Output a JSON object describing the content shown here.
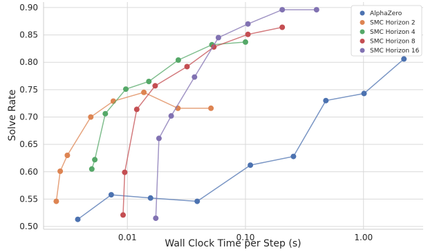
{
  "chart_data": {
    "type": "line",
    "xlabel": "Wall Clock Time per Step (s)",
    "ylabel": "Solve Rate",
    "xscale": "log",
    "xlim": [
      0.00195,
      3.2
    ],
    "ylim": [
      0.495,
      0.91
    ],
    "x_ticks": [
      0.01,
      0.1,
      1.0
    ],
    "x_tick_labels": [
      "0.01",
      "0.10",
      "1.00"
    ],
    "y_ticks": [
      0.5,
      0.55,
      0.6,
      0.65,
      0.7,
      0.75,
      0.8,
      0.85,
      0.9
    ],
    "y_tick_labels": [
      "0.50",
      "0.55",
      "0.60",
      "0.65",
      "0.70",
      "0.75",
      "0.80",
      "0.85",
      "0.90"
    ],
    "grid": true,
    "legend_position": "top-right",
    "series": [
      {
        "name": "AlphaZero",
        "color": "#4c72b0",
        "points": [
          [
            0.0038,
            0.513
          ],
          [
            0.0073,
            0.558
          ],
          [
            0.0157,
            0.552
          ],
          [
            0.039,
            0.546
          ],
          [
            0.11,
            0.612
          ],
          [
            0.255,
            0.628
          ],
          [
            0.48,
            0.73
          ],
          [
            1.01,
            0.743
          ],
          [
            2.2,
            0.806
          ]
        ]
      },
      {
        "name": "SMC Horizon 2",
        "color": "#dd8452",
        "points": [
          [
            0.0025,
            0.546
          ],
          [
            0.0027,
            0.601
          ],
          [
            0.0031,
            0.63
          ],
          [
            0.0049,
            0.7
          ],
          [
            0.0076,
            0.729
          ],
          [
            0.0138,
            0.745
          ],
          [
            0.0268,
            0.716
          ],
          [
            0.051,
            0.716
          ]
        ]
      },
      {
        "name": "SMC Horizon 4",
        "color": "#55a868",
        "points": [
          [
            0.005,
            0.605
          ],
          [
            0.0053,
            0.622
          ],
          [
            0.0065,
            0.706
          ],
          [
            0.0097,
            0.751
          ],
          [
            0.0152,
            0.765
          ],
          [
            0.027,
            0.804
          ],
          [
            0.052,
            0.832
          ],
          [
            0.1,
            0.837
          ]
        ]
      },
      {
        "name": "SMC Horizon 8",
        "color": "#c44e52",
        "points": [
          [
            0.0092,
            0.521
          ],
          [
            0.0095,
            0.599
          ],
          [
            0.012,
            0.714
          ],
          [
            0.0172,
            0.757
          ],
          [
            0.032,
            0.792
          ],
          [
            0.054,
            0.828
          ],
          [
            0.105,
            0.851
          ],
          [
            0.205,
            0.864
          ]
        ]
      },
      {
        "name": "SMC Horizon 16",
        "color": "#8172b2",
        "points": [
          [
            0.0174,
            0.515
          ],
          [
            0.0185,
            0.661
          ],
          [
            0.0235,
            0.702
          ],
          [
            0.037,
            0.773
          ],
          [
            0.059,
            0.845
          ],
          [
            0.105,
            0.87
          ],
          [
            0.205,
            0.896
          ],
          [
            0.4,
            0.896
          ]
        ]
      }
    ]
  }
}
